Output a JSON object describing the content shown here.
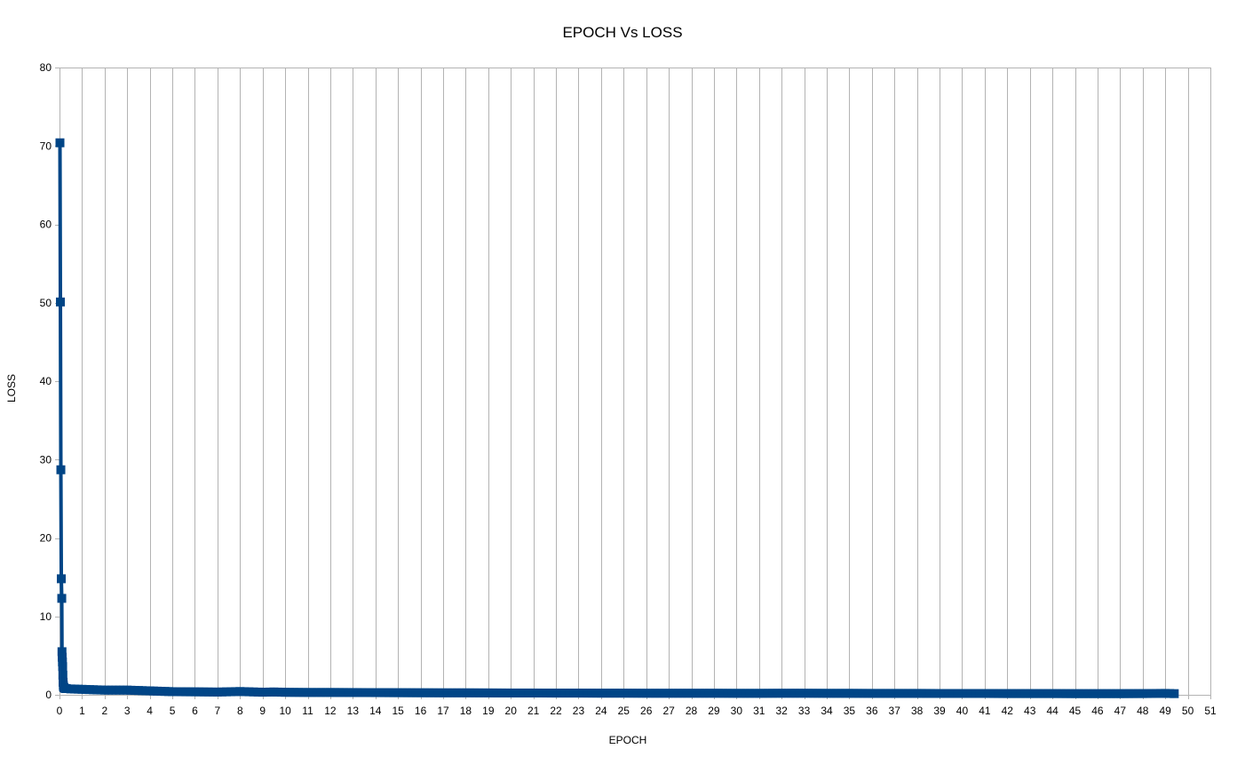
{
  "chart_data": {
    "type": "line",
    "title": "EPOCH Vs LOSS",
    "xlabel": "EPOCH",
    "ylabel": "LOSS",
    "xlim": [
      0,
      51
    ],
    "ylim": [
      0,
      80
    ],
    "x_ticks": [
      0,
      1,
      2,
      3,
      4,
      5,
      6,
      7,
      8,
      9,
      10,
      11,
      12,
      13,
      14,
      15,
      16,
      17,
      18,
      19,
      20,
      21,
      22,
      23,
      24,
      25,
      26,
      27,
      28,
      29,
      30,
      31,
      32,
      33,
      34,
      35,
      36,
      37,
      38,
      39,
      40,
      41,
      42,
      43,
      44,
      45,
      46,
      47,
      48,
      49,
      50,
      51
    ],
    "y_ticks": [
      0,
      10,
      20,
      30,
      40,
      50,
      60,
      70,
      80
    ],
    "grid": "vertical",
    "legend": "none",
    "series": [
      {
        "color": "#004586",
        "marker": "square",
        "x": [
          0.02,
          0.04,
          0.06,
          0.08,
          0.1,
          0.11,
          0.12,
          0.13,
          0.14,
          0.15,
          0.16,
          0.17,
          0.18,
          0.2,
          0.25,
          0.3,
          0.5,
          1,
          1.5,
          2,
          2.5,
          3,
          3.5,
          4,
          4.5,
          5,
          6,
          7,
          8,
          9,
          9.5,
          10,
          11,
          12,
          13,
          14,
          15,
          16,
          17,
          18,
          19,
          20,
          21,
          22,
          23,
          24,
          25,
          26,
          27,
          28,
          29,
          30,
          31,
          32,
          33,
          34,
          35,
          36,
          37,
          38,
          39,
          40,
          41,
          42,
          43,
          44,
          45,
          46,
          47,
          48,
          49,
          49.4
        ],
        "y": [
          70.4,
          50.1,
          28.7,
          14.8,
          12.3,
          5.5,
          4.8,
          4.2,
          3.6,
          2.5,
          1.6,
          1.2,
          1.0,
          0.9,
          0.8,
          0.8,
          0.75,
          0.7,
          0.65,
          0.6,
          0.6,
          0.6,
          0.55,
          0.5,
          0.45,
          0.4,
          0.38,
          0.35,
          0.42,
          0.33,
          0.36,
          0.32,
          0.3,
          0.3,
          0.29,
          0.28,
          0.27,
          0.26,
          0.25,
          0.25,
          0.24,
          0.23,
          0.23,
          0.22,
          0.22,
          0.21,
          0.21,
          0.2,
          0.2,
          0.2,
          0.2,
          0.19,
          0.19,
          0.2,
          0.2,
          0.19,
          0.19,
          0.18,
          0.18,
          0.18,
          0.17,
          0.17,
          0.17,
          0.16,
          0.16,
          0.16,
          0.15,
          0.15,
          0.15,
          0.16,
          0.18,
          0.15
        ]
      }
    ]
  }
}
